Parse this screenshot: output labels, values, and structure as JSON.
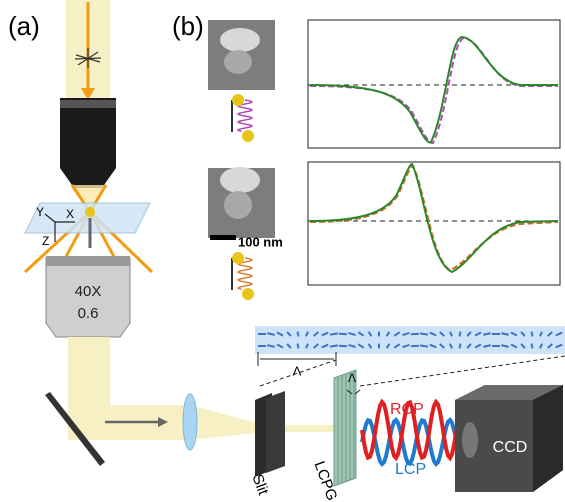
{
  "panels": {
    "a": "(a)",
    "b": "(b)"
  },
  "axes": {
    "x": "X",
    "y": "Y",
    "z": "Z"
  },
  "objective": {
    "magnification": "40X",
    "na": "0.6"
  },
  "scale_bar": "100 nm",
  "grating": {
    "period_long": "Λ",
    "period_short": "Λ"
  },
  "beams": {
    "rcp": "RCP",
    "lcp": "LCP"
  },
  "components": {
    "slit": "Slit",
    "lcpg": "LCPG",
    "ccd": "CCD"
  }
}
